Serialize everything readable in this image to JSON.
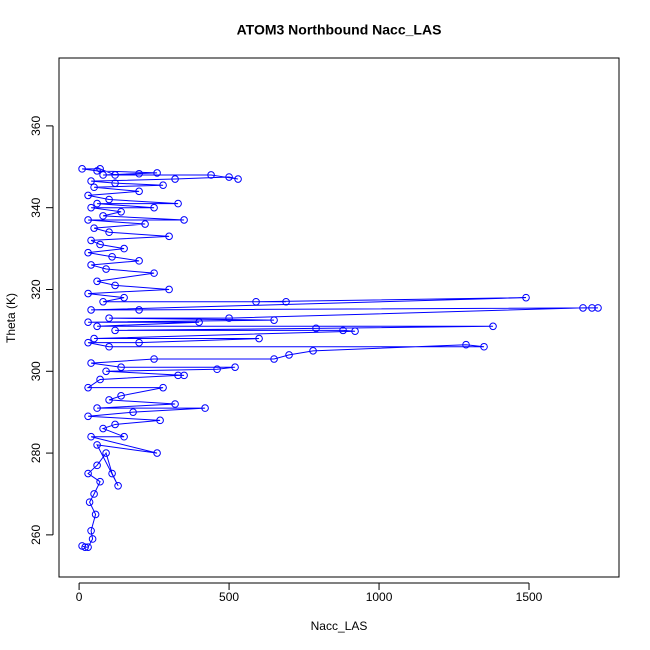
{
  "chart_data": {
    "type": "scatter",
    "connect": true,
    "markers": true,
    "title": "ATOM3 Northbound Nacc_LAS",
    "x_label": "Nacc_LAS",
    "y_label": "Theta (K)",
    "xlim": [
      -67,
      1800
    ],
    "ylim": [
      249.7,
      376.6
    ],
    "xticks": [
      0,
      500,
      1000,
      1500
    ],
    "yticks": [
      260,
      280,
      300,
      320,
      340,
      360
    ],
    "x": [
      10,
      20,
      30,
      45,
      40,
      55,
      35,
      50,
      70,
      30,
      60,
      90,
      110,
      130,
      60,
      260,
      40,
      150,
      80,
      120,
      270,
      30,
      180,
      420,
      60,
      320,
      100,
      140,
      280,
      30,
      70,
      330,
      350,
      90,
      460,
      520,
      140,
      40,
      250,
      650,
      700,
      780,
      1290,
      1350,
      100,
      30,
      200,
      600,
      50,
      920,
      880,
      120,
      790,
      1380,
      60,
      400,
      30,
      650,
      100,
      500,
      1680,
      1710,
      1730,
      200,
      40,
      1490,
      590,
      690,
      80,
      150,
      30,
      300,
      120,
      60,
      250,
      90,
      40,
      200,
      110,
      30,
      150,
      70,
      40,
      300,
      100,
      50,
      220,
      30,
      350,
      80,
      140,
      40,
      250,
      60,
      330,
      100,
      30,
      200,
      50,
      280,
      120,
      40,
      320,
      500,
      530,
      440,
      80,
      260,
      60,
      10,
      70,
      120,
      200
    ],
    "series": [
      {
        "color": "#0000ff",
        "values": [
          257.3,
          257,
          257,
          259,
          261,
          265,
          268,
          270,
          273,
          275,
          277,
          280,
          275,
          272,
          282,
          280,
          284,
          284,
          286,
          287,
          288,
          289,
          290,
          291,
          291,
          292,
          293,
          294,
          296,
          296,
          298,
          299,
          299,
          300,
          300.5,
          301,
          301,
          302,
          303,
          303,
          304,
          305,
          306.5,
          306,
          306,
          307,
          307,
          308,
          308,
          309.8,
          310,
          310,
          310.5,
          311,
          311,
          312,
          312,
          312.5,
          313,
          313,
          315.5,
          315.5,
          315.5,
          315,
          315,
          318,
          317,
          317,
          317,
          318,
          319,
          320,
          321,
          322,
          324,
          325,
          326,
          327,
          328,
          329,
          330,
          331,
          332,
          333,
          334,
          335,
          336,
          337,
          337,
          338,
          339,
          340,
          340,
          341,
          341,
          342,
          343,
          344,
          345,
          345.5,
          346,
          346.5,
          347,
          347.5,
          347,
          348,
          348,
          348.5,
          349,
          349.5,
          349.5,
          348,
          348.3
        ]
      }
    ]
  }
}
